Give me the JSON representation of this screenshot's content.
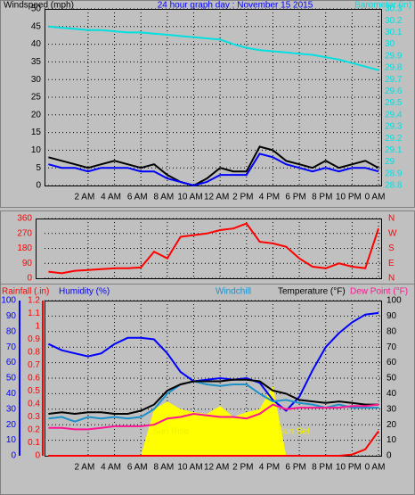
{
  "chart_data": [
    {
      "type": "line",
      "title": "24 hour graph day : November 15 2015",
      "ylabel": "Windspeed (mph)",
      "y2label": "Barometer (in)",
      "x": [
        -1,
        0,
        1,
        2,
        3,
        4,
        5,
        6,
        7,
        8,
        9,
        10,
        11,
        12,
        13,
        14,
        15,
        16,
        17,
        18,
        19,
        20,
        21,
        22,
        23,
        24
      ],
      "xlim": [
        -1.3,
        24.2
      ],
      "xticks": [
        {
          "value": 2,
          "label": "2 AM"
        },
        {
          "value": 4,
          "label": "4 AM"
        },
        {
          "value": 6,
          "label": "6 AM"
        },
        {
          "value": 8,
          "label": "8 AM"
        },
        {
          "value": 10,
          "label": "10 AM"
        },
        {
          "value": 12,
          "label": "12 AM"
        },
        {
          "value": 14,
          "label": "2 PM"
        },
        {
          "value": 16,
          "label": "4 PM"
        },
        {
          "value": 18,
          "label": "6 PM"
        },
        {
          "value": 20,
          "label": "8 PM"
        },
        {
          "value": 22,
          "label": "10 PM"
        },
        {
          "value": 24,
          "label": "0 AM"
        }
      ],
      "ylim": [
        0,
        50
      ],
      "yticks": [
        0,
        5,
        10,
        15,
        20,
        25,
        30,
        35,
        40,
        45,
        50
      ],
      "y2lim": [
        28.8,
        30.3
      ],
      "y2ticks": [
        28.8,
        28.9,
        29,
        29.1,
        29.2,
        29.3,
        29.4,
        29.5,
        29.6,
        29.7,
        29.8,
        29.9,
        30,
        30.1,
        30.2,
        30.3
      ],
      "axis_colors": {
        "y": "#000000",
        "y2": "#00e0e0"
      },
      "title_color": "#0000ff",
      "grid": true,
      "series": [
        {
          "color": "#000000",
          "values": [
            8,
            7,
            6,
            5,
            6,
            7,
            6,
            5,
            6,
            3,
            1,
            0,
            2,
            5,
            4,
            4,
            11,
            10,
            7,
            6,
            5,
            7,
            5,
            6,
            7,
            5
          ]
        },
        {
          "color": "#0000ff",
          "values": [
            6,
            5,
            5,
            4,
            5,
            5,
            5,
            4,
            4,
            2,
            1,
            0,
            1,
            3,
            3,
            3,
            9,
            8,
            6,
            5,
            4,
            5,
            4,
            5,
            5,
            4
          ]
        },
        {
          "color": "#00e0e0",
          "axis": "y2",
          "values": [
            30.15,
            30.14,
            30.13,
            30.12,
            30.12,
            30.11,
            30.1,
            30.1,
            30.09,
            30.08,
            30.07,
            30.06,
            30.05,
            30.04,
            30.0,
            29.97,
            29.95,
            29.94,
            29.93,
            29.92,
            29.91,
            29.89,
            29.87,
            29.84,
            29.81,
            29.78
          ]
        }
      ]
    },
    {
      "type": "line",
      "x": [
        -1,
        0,
        1,
        2,
        3,
        4,
        5,
        6,
        7,
        8,
        9,
        10,
        11,
        12,
        13,
        14,
        15,
        16,
        17,
        18,
        19,
        20,
        21,
        22,
        23,
        24
      ],
      "xlim": [
        -1.3,
        24.2
      ],
      "ylim": [
        0,
        360
      ],
      "yticks": [
        0,
        90,
        180,
        270,
        360
      ],
      "y2lim": [
        0,
        360
      ],
      "y2ticks": [
        {
          "value": 360,
          "label": "N"
        },
        {
          "value": 270,
          "label": "W"
        },
        {
          "value": 180,
          "label": "S"
        },
        {
          "value": 90,
          "label": "E"
        },
        {
          "value": 0,
          "label": "N"
        }
      ],
      "axis_colors": {
        "y": "#ff0000",
        "y2": "#ff0000"
      },
      "grid": true,
      "series": [
        {
          "color": "#ff0000",
          "values": [
            40,
            30,
            45,
            50,
            55,
            60,
            60,
            65,
            160,
            120,
            250,
            260,
            270,
            290,
            300,
            330,
            220,
            210,
            190,
            120,
            70,
            60,
            90,
            70,
            60,
            300
          ]
        }
      ]
    },
    {
      "type": "line",
      "x": [
        -1,
        0,
        1,
        2,
        3,
        4,
        5,
        6,
        7,
        8,
        9,
        10,
        11,
        12,
        13,
        14,
        15,
        16,
        17,
        18,
        19,
        20,
        21,
        22,
        23,
        24
      ],
      "xlim": [
        -1.3,
        24.2
      ],
      "xticks": [
        {
          "value": 2,
          "label": "2 AM"
        },
        {
          "value": 4,
          "label": "4 AM"
        },
        {
          "value": 6,
          "label": "6 AM"
        },
        {
          "value": 8,
          "label": "8 AM"
        },
        {
          "value": 10,
          "label": "10 AM"
        },
        {
          "value": 12,
          "label": "12 AM"
        },
        {
          "value": 14,
          "label": "2 PM"
        },
        {
          "value": 16,
          "label": "4 PM"
        },
        {
          "value": 18,
          "label": "6 PM"
        },
        {
          "value": 20,
          "label": "8 PM"
        },
        {
          "value": 22,
          "label": "10 PM"
        },
        {
          "value": 24,
          "label": "0 AM"
        }
      ],
      "ylim": [
        0,
        100
      ],
      "yticks": [
        0,
        10,
        20,
        30,
        40,
        50,
        60,
        70,
        80,
        90,
        100
      ],
      "y2lim": [
        0,
        100
      ],
      "y2ticks": [
        0,
        10,
        20,
        30,
        40,
        50,
        60,
        70,
        80,
        90,
        100
      ],
      "y3lim": [
        0,
        1.2
      ],
      "y3ticks": [
        0,
        0.1,
        0.2,
        0.3,
        0.4,
        0.5,
        0.6,
        0.7,
        0.8,
        0.9,
        1,
        1.1,
        1.2
      ],
      "axis_colors": {
        "y": "#0000ff",
        "y2": "#000000",
        "y3": "#ff0000"
      },
      "grid": true,
      "annotations": [
        {
          "text": "Sun Rise",
          "x": 6.9
        },
        {
          "text": "Sun Set",
          "x": 16.4
        }
      ],
      "series": [
        {
          "kind": "area",
          "color": "#ffff00",
          "values": [
            0,
            0,
            0,
            0,
            0,
            0,
            0,
            0,
            30,
            35,
            30,
            28,
            27,
            32,
            25,
            28,
            30,
            45,
            0,
            0,
            0,
            0,
            0,
            0,
            0,
            0
          ]
        },
        {
          "name": "Rainfall (.in)",
          "color": "#ff0000",
          "axis": "y3",
          "values": [
            0,
            0,
            0,
            0,
            0,
            0,
            0,
            0,
            0,
            0,
            0,
            0,
            0,
            0,
            0,
            0,
            0,
            0,
            0,
            0,
            0,
            0,
            0,
            0.01,
            0.05,
            0.19
          ]
        },
        {
          "name": "Humidity (%)",
          "color": "#0000ff",
          "values": [
            72,
            68,
            66,
            64,
            66,
            72,
            76,
            76,
            75,
            66,
            54,
            48,
            49,
            50,
            49,
            50,
            47,
            36,
            29,
            38,
            55,
            70,
            79,
            86,
            91,
            92
          ]
        },
        {
          "name": "Windchill",
          "color": "#1e90c8",
          "axis": "y2",
          "values": [
            24,
            25,
            22,
            25,
            24,
            25,
            24,
            25,
            30,
            40,
            46,
            48,
            46,
            45,
            46,
            46,
            40,
            35,
            36,
            34,
            33,
            31,
            33,
            31,
            31,
            31
          ]
        },
        {
          "name": "Temperature (°F)",
          "color": "#000000",
          "axis": "y2",
          "values": [
            27,
            28,
            27,
            28,
            28,
            27,
            27,
            29,
            33,
            42,
            46,
            48,
            48,
            48,
            49,
            49,
            48,
            42,
            40,
            36,
            35,
            34,
            35,
            34,
            33,
            33
          ]
        },
        {
          "name": "Dew Point (°F)",
          "color": "#ff1493",
          "axis": "y2",
          "values": [
            18,
            18,
            17,
            17,
            18,
            19,
            19,
            19,
            20,
            24,
            25,
            27,
            26,
            25,
            25,
            24,
            27,
            33,
            30,
            31,
            31,
            31,
            31,
            32,
            32,
            33
          ]
        }
      ]
    }
  ]
}
